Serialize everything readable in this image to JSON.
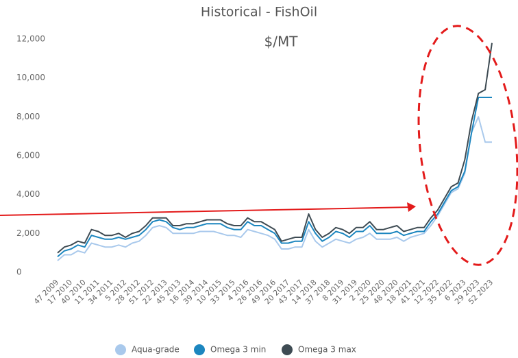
{
  "chart_data": {
    "type": "line",
    "title": "Historical - FishOil",
    "subtitle": "$/MT",
    "categories": [
      "47 2009",
      null,
      "17 2010",
      null,
      "40 2010",
      null,
      "11 2011",
      null,
      "34 2011",
      null,
      "5 2012",
      null,
      "28 2012",
      null,
      "51 2012",
      null,
      "22 2013",
      null,
      "45 2013",
      null,
      "16 2014",
      null,
      "39 2014",
      null,
      "10 2015",
      null,
      "33 2015",
      null,
      "4 2016",
      null,
      "26 2016",
      null,
      "49 2016",
      null,
      "20 2017",
      null,
      "43 2017",
      null,
      "14 2018",
      null,
      "37 2018",
      null,
      "8 2019",
      null,
      "31 2019",
      null,
      "2 2020",
      null,
      "25 2020",
      null,
      "48 2020",
      null,
      "18 2021",
      null,
      "41 2021",
      null,
      "12 2022",
      null,
      "35 2022",
      null,
      "6 2023",
      null,
      "29 2023",
      null,
      "52 2023"
    ],
    "series": [
      {
        "name": "Aqua-grade",
        "color": "#a9c9ec",
        "values": [
          600,
          900,
          900,
          1100,
          1000,
          1500,
          1400,
          1300,
          1300,
          1400,
          1300,
          1500,
          1600,
          1900,
          2300,
          2400,
          2300,
          2000,
          2000,
          2000,
          2000,
          2100,
          2100,
          2100,
          2000,
          1900,
          1900,
          1800,
          2200,
          2100,
          2000,
          1900,
          1700,
          1200,
          1200,
          1300,
          1300,
          2200,
          1600,
          1300,
          1500,
          1700,
          1600,
          1500,
          1700,
          1800,
          2000,
          1700,
          1700,
          1700,
          1800,
          1600,
          1800,
          1900,
          2000,
          2400,
          2900,
          3500,
          4100,
          4300,
          5100,
          7200,
          8000,
          6700,
          6700
        ]
      },
      {
        "name": "Omega 3 min",
        "color": "#1c86bf",
        "values": [
          800,
          1100,
          1200,
          1400,
          1300,
          1900,
          1800,
          1700,
          1700,
          1800,
          1700,
          1800,
          1900,
          2200,
          2600,
          2700,
          2600,
          2300,
          2200,
          2300,
          2300,
          2400,
          2500,
          2500,
          2500,
          2300,
          2200,
          2200,
          2600,
          2400,
          2400,
          2200,
          2000,
          1500,
          1500,
          1600,
          1600,
          2600,
          2000,
          1600,
          1800,
          2100,
          2000,
          1800,
          2100,
          2100,
          2400,
          2000,
          2000,
          2000,
          2100,
          1900,
          2000,
          2100,
          2100,
          2600,
          3000,
          3600,
          4200,
          4400,
          5200,
          7200,
          9000,
          9000,
          9000
        ]
      },
      {
        "name": "Omega 3 max",
        "color": "#3e4b53",
        "values": [
          1000,
          1300,
          1400,
          1600,
          1500,
          2200,
          2100,
          1900,
          1900,
          2000,
          1800,
          2000,
          2100,
          2400,
          2800,
          2800,
          2800,
          2400,
          2400,
          2500,
          2500,
          2600,
          2700,
          2700,
          2700,
          2500,
          2400,
          2400,
          2800,
          2600,
          2600,
          2400,
          2200,
          1600,
          1700,
          1800,
          1800,
          3000,
          2200,
          1800,
          2000,
          2300,
          2200,
          2000,
          2300,
          2300,
          2600,
          2200,
          2200,
          2300,
          2400,
          2100,
          2200,
          2300,
          2300,
          2800,
          3200,
          3800,
          4400,
          4600,
          5800,
          7800,
          9200,
          9400,
          11800
        ]
      }
    ],
    "ylim": [
      0,
      12000
    ],
    "yticks": [
      0,
      {
        "value": 2000,
        "label": "2,000"
      },
      {
        "value": 4000,
        "label": "4,000"
      },
      {
        "value": 6000,
        "label": "6,000"
      },
      {
        "value": 8000,
        "label": "8,000"
      },
      {
        "value": 10000,
        "label": "10,000"
      },
      {
        "value": 12000,
        "label": "12,000"
      }
    ],
    "grid": false,
    "legend": "bottom"
  }
}
